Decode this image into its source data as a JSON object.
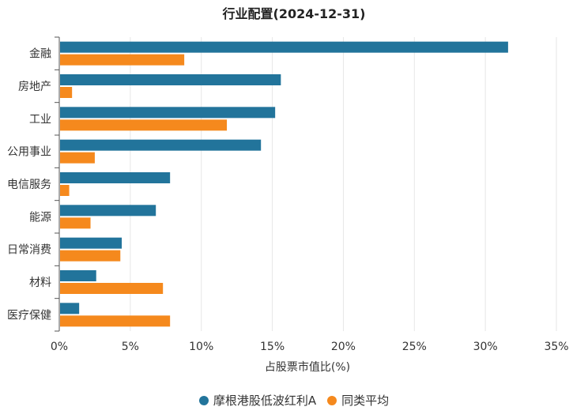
{
  "chart_data": {
    "type": "bar",
    "orientation": "horizontal",
    "title": "行业配置(2024-12-31)",
    "xlabel": "占股票市值比(%)",
    "ylabel": "",
    "xlim": [
      0,
      35
    ],
    "x_ticks": [
      "0%",
      "5%",
      "10%",
      "15%",
      "20%",
      "25%",
      "30%",
      "35%"
    ],
    "categories": [
      "金融",
      "房地产",
      "工业",
      "公用事业",
      "电信服务",
      "能源",
      "日常消费",
      "材料",
      "医疗保健"
    ],
    "series": [
      {
        "name": "摩根港股低波红利A",
        "color": "#22749b",
        "values": [
          31.6,
          15.6,
          15.2,
          14.2,
          7.8,
          6.8,
          4.4,
          2.6,
          1.4
        ]
      },
      {
        "name": "同类平均",
        "color": "#f5891d",
        "values": [
          8.8,
          0.9,
          11.8,
          2.5,
          0.7,
          2.2,
          4.3,
          7.3,
          7.8
        ]
      }
    ],
    "grid": true,
    "legend_position": "bottom-center"
  }
}
